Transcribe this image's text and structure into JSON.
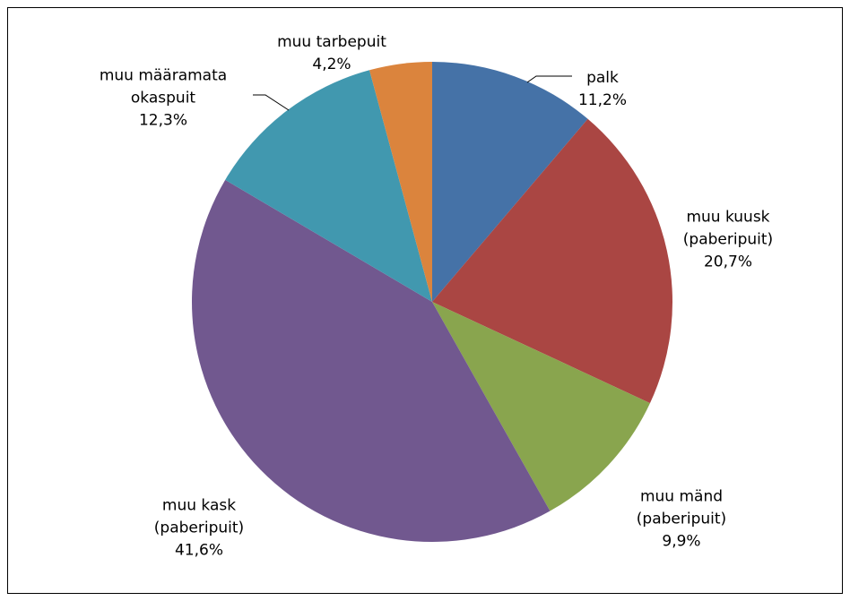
{
  "chart_data": {
    "type": "pie",
    "categories": [
      "palk",
      "muu kuusk\n(paberipuit)",
      "muu mänd\n(paberipuit)",
      "muu kask\n(paberipuit)",
      "muu määramata\nokaspuit",
      "muu tarbepuit"
    ],
    "values": [
      11.2,
      20.7,
      9.9,
      41.6,
      12.3,
      4.2
    ],
    "value_labels": [
      "11,2%",
      "20,7%",
      "9,9%",
      "41,6%",
      "12,3%",
      "4,2%"
    ],
    "colors": [
      "#4572a7",
      "#aa4643",
      "#89a54e",
      "#71588f",
      "#4198af",
      "#db843d"
    ]
  }
}
